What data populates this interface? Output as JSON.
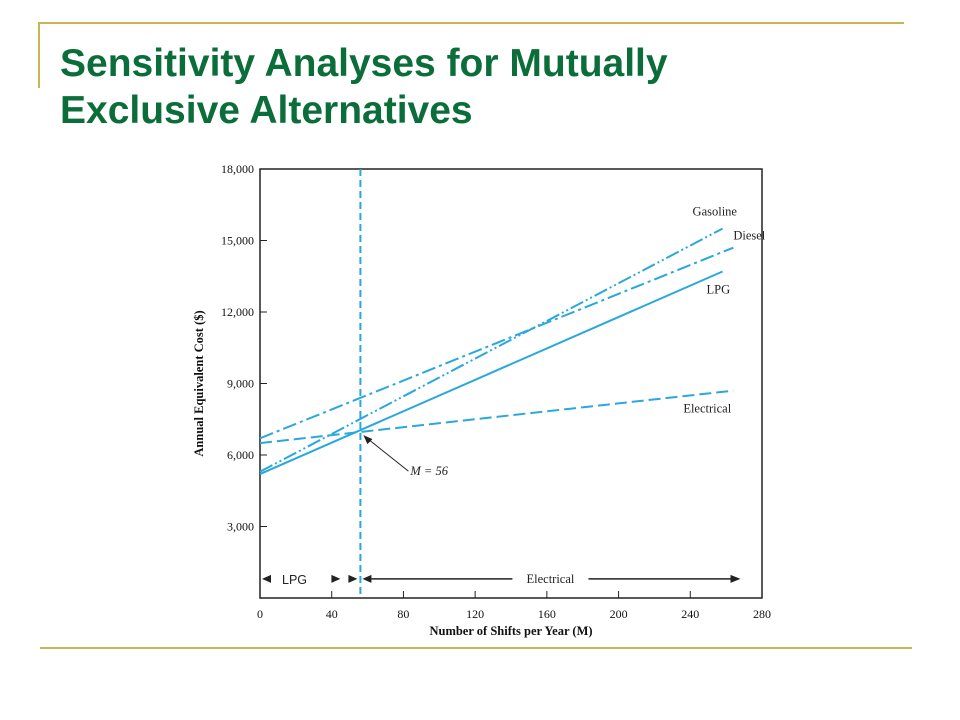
{
  "slide": {
    "title_line1": "Sensitivity Analyses for Mutually",
    "title_line2": "Exclusive Alternatives"
  },
  "chart_data": {
    "type": "line",
    "xlabel": "Number of Shifts per Year (M)",
    "ylabel": "Annual Equivalent Cost ($)",
    "xlim": [
      0,
      280
    ],
    "ylim": [
      0,
      18000
    ],
    "xticks": [
      0,
      40,
      80,
      120,
      160,
      200,
      240,
      280
    ],
    "yticks": [
      3000,
      6000,
      9000,
      12000,
      15000,
      18000
    ],
    "xtick_labels": [
      "0",
      "40",
      "80",
      "120",
      "160",
      "200",
      "240",
      "280"
    ],
    "ytick_labels": [
      "3,000",
      "6,000",
      "9,000",
      "12,000",
      "15,000",
      "18,000"
    ],
    "series": [
      {
        "name": "Gasoline",
        "dash": "dash-dot-dot",
        "x": [
          0,
          258
        ],
        "y": [
          5300,
          15500
        ]
      },
      {
        "name": "Diesel",
        "dash": "dash-dot",
        "x": [
          0,
          264
        ],
        "y": [
          6700,
          14700
        ]
      },
      {
        "name": "LPG",
        "dash": "solid",
        "x": [
          0,
          258
        ],
        "y": [
          5200,
          13700
        ]
      },
      {
        "name": "Electrical",
        "dash": "dashed",
        "x": [
          0,
          264
        ],
        "y": [
          6500,
          8700
        ]
      }
    ],
    "breakeven": {
      "x": 56,
      "y": 7000,
      "label": "M = 56"
    },
    "regions": [
      {
        "label": "LPG",
        "from": 0,
        "to": 56
      },
      {
        "label": "Electrical",
        "from": 56,
        "to": 268
      }
    ],
    "line_color": "#2aa8dc",
    "grid": false
  }
}
